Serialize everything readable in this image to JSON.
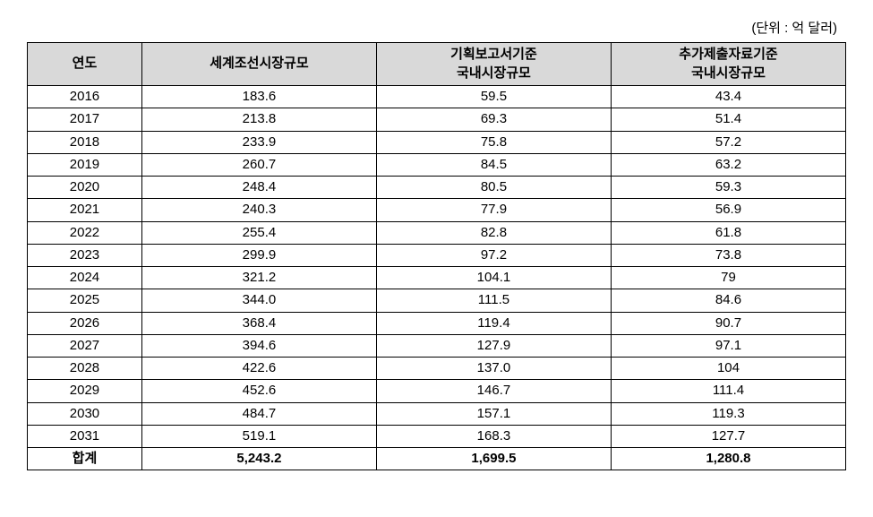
{
  "unit_label": "(단위 : 억 달러)",
  "table": {
    "type": "table",
    "background_color": "#ffffff",
    "header_bg": "#d9d9d9",
    "border_color": "#000000",
    "font_size": 15,
    "columns": [
      {
        "label": "연도",
        "width_pct": 14
      },
      {
        "label": "세계조선시장규모",
        "width_pct": 28.666
      },
      {
        "label": "기획보고서기준\n국내시장규모",
        "width_pct": 28.666
      },
      {
        "label": "추가제출자료기준\n국내시장규모",
        "width_pct": 28.666
      }
    ],
    "rows": [
      [
        "2016",
        "183.6",
        "59.5",
        "43.4"
      ],
      [
        "2017",
        "213.8",
        "69.3",
        "51.4"
      ],
      [
        "2018",
        "233.9",
        "75.8",
        "57.2"
      ],
      [
        "2019",
        "260.7",
        "84.5",
        "63.2"
      ],
      [
        "2020",
        "248.4",
        "80.5",
        "59.3"
      ],
      [
        "2021",
        "240.3",
        "77.9",
        "56.9"
      ],
      [
        "2022",
        "255.4",
        "82.8",
        "61.8"
      ],
      [
        "2023",
        "299.9",
        "97.2",
        "73.8"
      ],
      [
        "2024",
        "321.2",
        "104.1",
        "79"
      ],
      [
        "2025",
        "344.0",
        "111.5",
        "84.6"
      ],
      [
        "2026",
        "368.4",
        "119.4",
        "90.7"
      ],
      [
        "2027",
        "394.6",
        "127.9",
        "97.1"
      ],
      [
        "2028",
        "422.6",
        "137.0",
        "104"
      ],
      [
        "2029",
        "452.6",
        "146.7",
        "111.4"
      ],
      [
        "2030",
        "484.7",
        "157.1",
        "119.3"
      ],
      [
        "2031",
        "519.1",
        "168.3",
        "127.7"
      ]
    ],
    "footer": [
      "합계",
      "5,243.2",
      "1,699.5",
      "1,280.8"
    ]
  }
}
